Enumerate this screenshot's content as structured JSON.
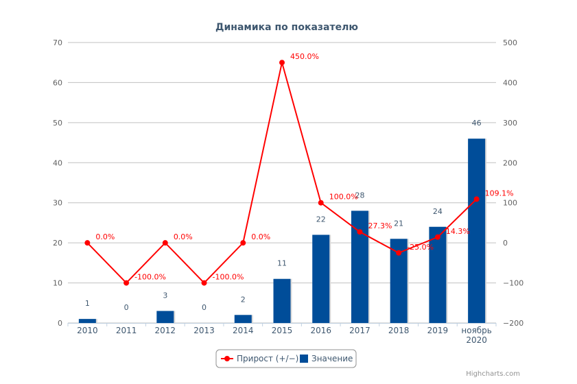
{
  "chart_data": {
    "type": "bar",
    "title": "Динамика по показателю",
    "categories": [
      "2010",
      "2011",
      "2012",
      "2013",
      "2014",
      "2015",
      "2016",
      "2017",
      "2018",
      "2019",
      "ноябрь 2020"
    ],
    "series": [
      {
        "name": "Значение",
        "type": "bar",
        "axis": "left",
        "color": "#004d99",
        "values": [
          1,
          0,
          3,
          0,
          2,
          11,
          22,
          28,
          21,
          24,
          46
        ],
        "labels": [
          "1",
          "0",
          "3",
          "0",
          "2",
          "11",
          "22",
          "28",
          "21",
          "24",
          "46"
        ]
      },
      {
        "name": "Прирост (+/−)",
        "type": "line",
        "axis": "right",
        "color": "#ff0000",
        "values": [
          0,
          -100,
          0,
          -100,
          0,
          450,
          100,
          27.3,
          -25,
          14.3,
          109.1
        ],
        "labels": [
          "0.0%",
          "-100.0%",
          "0.0%",
          "-100.0%",
          "0.0%",
          "450.0%",
          "100.0%",
          "27.3%",
          "-25.0%",
          "14.3%",
          "109.1%"
        ]
      }
    ],
    "y_left": {
      "range": [
        0,
        70
      ],
      "ticks": [
        "0",
        "10",
        "20",
        "30",
        "40",
        "50",
        "60",
        "70"
      ]
    },
    "y_right": {
      "range": [
        -200,
        500
      ],
      "ticks": [
        "−200",
        "−100",
        "0",
        "100",
        "200",
        "300",
        "400",
        "500"
      ]
    },
    "grid": true,
    "legend": "bottom-center"
  },
  "credits": "Highcharts.com"
}
